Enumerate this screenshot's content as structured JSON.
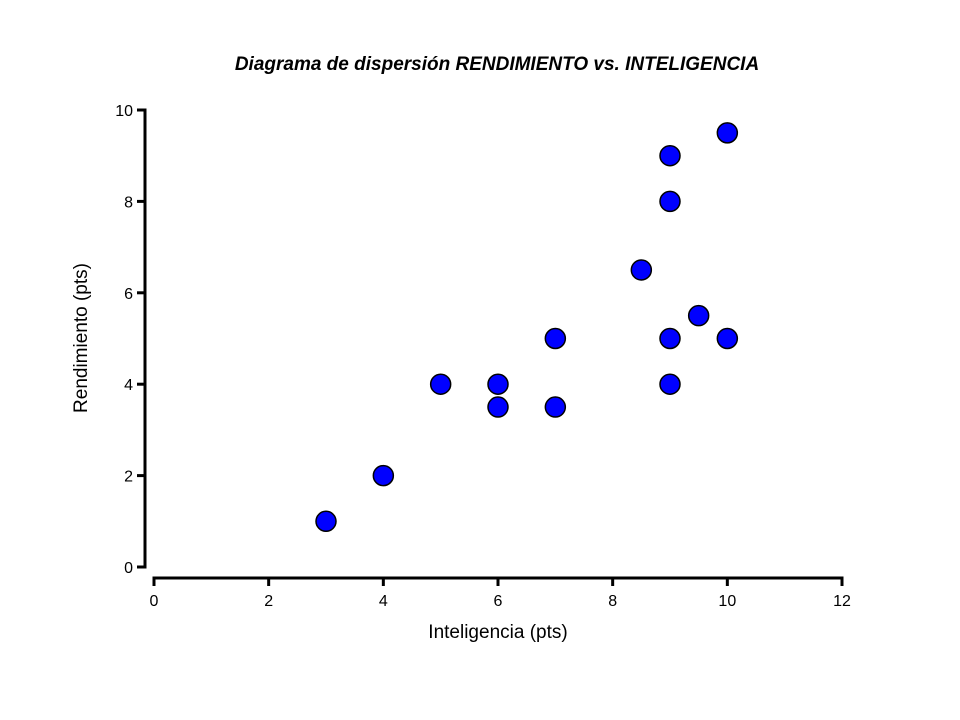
{
  "chart_data": {
    "type": "scatter",
    "title": "Diagrama de dispersión RENDIMIENTO vs. INTELIGENCIA",
    "xlabel": "Inteligencia (pts)",
    "ylabel": "Rendimiento (pts)",
    "xlim": [
      0,
      12
    ],
    "ylim": [
      0,
      10
    ],
    "xticks": [
      "0",
      "2",
      "4",
      "6",
      "8",
      "10",
      "12"
    ],
    "yticks": [
      "0",
      "2",
      "4",
      "6",
      "8",
      "10"
    ],
    "grid": false,
    "legend": "none",
    "colors": {
      "point_fill": "#0000ff",
      "point_stroke": "#000000",
      "axis": "#000000"
    },
    "points": [
      {
        "x": 3,
        "y": 1
      },
      {
        "x": 4,
        "y": 2
      },
      {
        "x": 5,
        "y": 4
      },
      {
        "x": 6,
        "y": 4
      },
      {
        "x": 6,
        "y": 3.5
      },
      {
        "x": 7,
        "y": 3.5
      },
      {
        "x": 7,
        "y": 5
      },
      {
        "x": 8.5,
        "y": 6.5
      },
      {
        "x": 9,
        "y": 9
      },
      {
        "x": 9,
        "y": 8
      },
      {
        "x": 9,
        "y": 5
      },
      {
        "x": 9,
        "y": 4
      },
      {
        "x": 9.5,
        "y": 5.5
      },
      {
        "x": 10,
        "y": 9.5
      },
      {
        "x": 10,
        "y": 5
      }
    ]
  }
}
